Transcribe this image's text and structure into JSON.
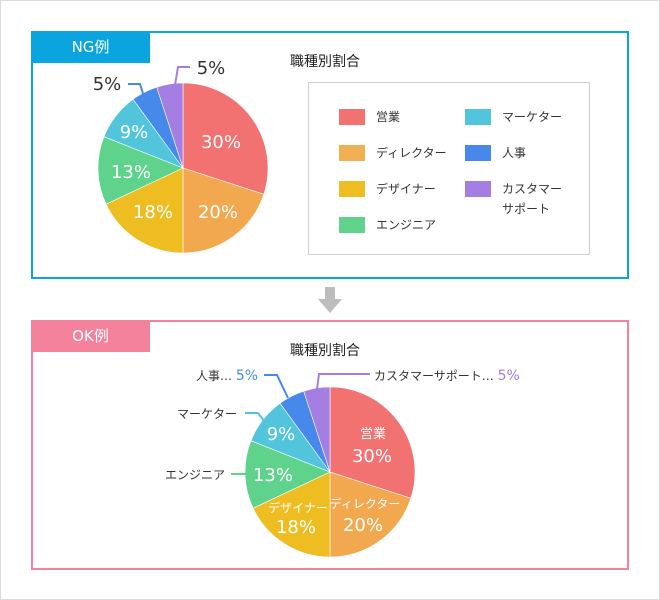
{
  "ng": {
    "tag": "NG例",
    "title": "職種別割合",
    "legend": [
      {
        "label": "営業",
        "color": "#f27272"
      },
      {
        "label": "ディレクター",
        "color": "#f2a84e"
      },
      {
        "label": "デザイナー",
        "color": "#eebd21"
      },
      {
        "label": "エンジニア",
        "color": "#5fd38c"
      },
      {
        "label": "マーケター",
        "color": "#52c5dc"
      },
      {
        "label": "人事",
        "color": "#4689ea"
      },
      {
        "label": "カスタマー\nサポート",
        "label_line1": "カスタマー",
        "label_line2": "サポート",
        "color": "#a57ee3"
      }
    ],
    "slice_labels": {
      "sales": "30%",
      "director": "20%",
      "designer": "18%",
      "engineer": "13%",
      "marketer": "9%",
      "hr": "5%",
      "support": "5%"
    }
  },
  "ok": {
    "tag": "OK例",
    "title": "職種別割合",
    "inner": {
      "sales_name": "営業",
      "sales_pct": "30%",
      "director_name": "ディレクター",
      "director_pct": "20%",
      "designer_name": "デザイナー",
      "designer_pct": "18%",
      "engineer_pct": "13%",
      "marketer_pct": "9%"
    },
    "outer": {
      "hr_name": "人事…",
      "hr_pct": "5%",
      "support_name": "カスタマーサポート…",
      "support_pct": "5%",
      "marketer_name": "マーケター",
      "engineer_name": "エンジニア"
    }
  },
  "chart_data": [
    {
      "type": "pie",
      "title": "職種別割合 (NG例)",
      "categories": [
        "営業",
        "ディレクター",
        "デザイナー",
        "エンジニア",
        "マーケター",
        "人事",
        "カスタマーサポート"
      ],
      "values": [
        30,
        20,
        18,
        13,
        9,
        5,
        5
      ],
      "colors": [
        "#f27272",
        "#f2a84e",
        "#eebd21",
        "#5fd38c",
        "#52c5dc",
        "#4689ea",
        "#a57ee3"
      ],
      "legend_position": "right"
    },
    {
      "type": "pie",
      "title": "職種別割合 (OK例)",
      "categories": [
        "営業",
        "ディレクター",
        "デザイナー",
        "エンジニア",
        "マーケター",
        "人事",
        "カスタマーサポート"
      ],
      "values": [
        30,
        20,
        18,
        13,
        9,
        5,
        5
      ],
      "colors": [
        "#f27272",
        "#f2a84e",
        "#eebd21",
        "#5fd38c",
        "#52c5dc",
        "#4689ea",
        "#a57ee3"
      ],
      "legend_position": "none (direct labels)"
    }
  ]
}
